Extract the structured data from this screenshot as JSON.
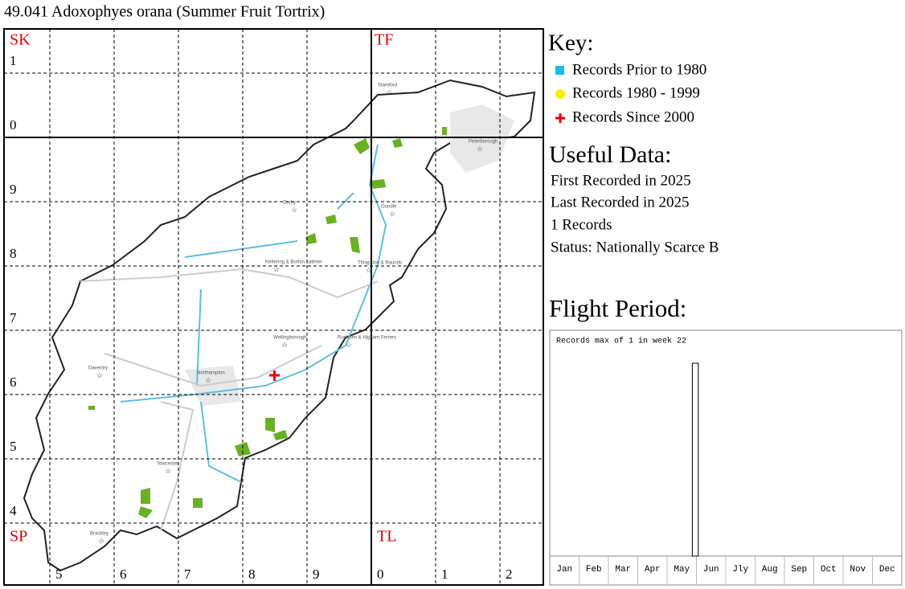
{
  "title": "49.041 Adoxophyes orana (Summer Fruit Tortrix)",
  "map": {
    "square_labels": [
      "SK",
      "TF",
      "SP",
      "TL"
    ],
    "column_labels": [
      "5",
      "6",
      "7",
      "8",
      "9",
      "0",
      "1",
      "2"
    ],
    "row_labels": [
      "1",
      "0",
      "9",
      "8",
      "7",
      "6",
      "5",
      "4"
    ],
    "towns": [
      "Stamford",
      "Peterborough",
      "Corby",
      "Oundle",
      "Kettering & Burton Latimer",
      "Thrapston & Raunds",
      "Wellingborough",
      "Rushden & Higham Ferrers",
      "Daventry",
      "Northampton",
      "Towcester",
      "Brackley"
    ]
  },
  "key": {
    "title": "Key:",
    "items": [
      "Records Prior to 1980",
      "Records 1980 - 1999",
      "Records Since 2000"
    ]
  },
  "useful_data": {
    "title": "Useful Data:",
    "lines": [
      "First Recorded in 2025",
      "Last Recorded in 2025",
      "1 Records",
      "Status: Nationally Scarce B"
    ]
  },
  "flight_period": {
    "title": "Flight Period:",
    "note": "Records max of 1 in week 22",
    "months": [
      "Jan",
      "Feb",
      "Mar",
      "Apr",
      "May",
      "Jun",
      "Jly",
      "Aug",
      "Sep",
      "Oct",
      "Nov",
      "Dec"
    ],
    "weekly_records": [
      0,
      0,
      0,
      0,
      0,
      0,
      0,
      0,
      0,
      0,
      0,
      0,
      0,
      0,
      0,
      0,
      0,
      0,
      0,
      0,
      0,
      1,
      0,
      0,
      0,
      0,
      0,
      0,
      0,
      0,
      0,
      0,
      0,
      0,
      0,
      0,
      0,
      0,
      0,
      0,
      0,
      0,
      0,
      0,
      0,
      0,
      0,
      0,
      0,
      0,
      0,
      0
    ]
  }
}
